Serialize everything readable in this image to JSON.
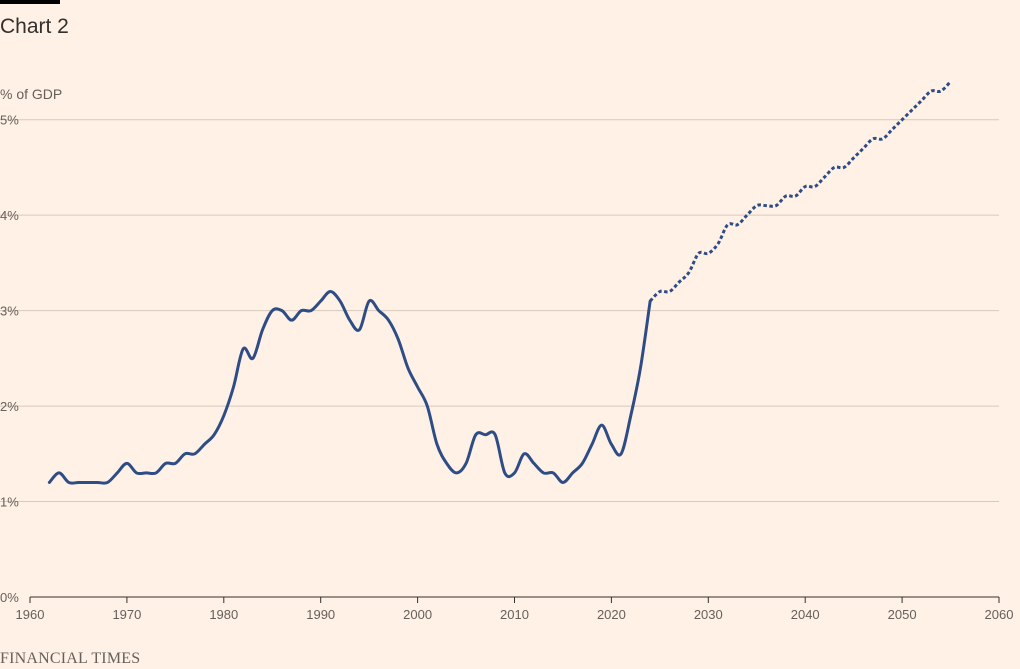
{
  "header": {
    "title": "Chart 2",
    "unit": "% of GDP"
  },
  "footer": {
    "source": "FINANCIAL TIMES"
  },
  "colors": {
    "background": "#fff1e5",
    "line": "#2e4d86",
    "grid": "#d6c9bd",
    "axis": "#33302e",
    "text": "#66605c"
  },
  "chart_data": {
    "type": "line",
    "title": "Chart 2",
    "xlabel": "",
    "ylabel": "% of GDP",
    "xlim": [
      1960,
      2060
    ],
    "ylim": [
      0,
      5.5
    ],
    "x_ticks": [
      1960,
      1970,
      1980,
      1990,
      2000,
      2010,
      2020,
      2030,
      2040,
      2050,
      2060
    ],
    "y_ticks": [
      {
        "value": 0,
        "label": "0%"
      },
      {
        "value": 1,
        "label": "1%"
      },
      {
        "value": 2,
        "label": "2%"
      },
      {
        "value": 3,
        "label": "3%"
      },
      {
        "value": 4,
        "label": "4%"
      },
      {
        "value": 5,
        "label": "5%"
      }
    ],
    "grid": true,
    "series": [
      {
        "style": "solid",
        "x": [
          1962,
          1963,
          1964,
          1965,
          1966,
          1967,
          1968,
          1969,
          1970,
          1971,
          1972,
          1973,
          1974,
          1975,
          1976,
          1977,
          1978,
          1979,
          1980,
          1981,
          1982,
          1983,
          1984,
          1985,
          1986,
          1987,
          1988,
          1989,
          1990,
          1991,
          1992,
          1993,
          1994,
          1995,
          1996,
          1997,
          1998,
          1999,
          2000,
          2001,
          2002,
          2003,
          2004,
          2005,
          2006,
          2007,
          2008,
          2009,
          2010,
          2011,
          2012,
          2013,
          2014,
          2015,
          2016,
          2017,
          2018,
          2019,
          2020,
          2021,
          2022,
          2023,
          2024
        ],
        "y": [
          1.2,
          1.3,
          1.2,
          1.2,
          1.2,
          1.2,
          1.2,
          1.3,
          1.4,
          1.3,
          1.3,
          1.3,
          1.4,
          1.4,
          1.5,
          1.5,
          1.6,
          1.7,
          1.9,
          2.2,
          2.6,
          2.5,
          2.8,
          3.0,
          3.0,
          2.9,
          3.0,
          3.0,
          3.1,
          3.2,
          3.1,
          2.9,
          2.8,
          3.1,
          3.0,
          2.9,
          2.7,
          2.4,
          2.2,
          2.0,
          1.6,
          1.4,
          1.3,
          1.4,
          1.7,
          1.7,
          1.7,
          1.3,
          1.3,
          1.5,
          1.4,
          1.3,
          1.3,
          1.2,
          1.3,
          1.4,
          1.6,
          1.8,
          1.6,
          1.5,
          1.9,
          2.4,
          3.1
        ]
      },
      {
        "style": "dotted",
        "x": [
          2024,
          2025,
          2026,
          2027,
          2028,
          2029,
          2030,
          2031,
          2032,
          2033,
          2034,
          2035,
          2036,
          2037,
          2038,
          2039,
          2040,
          2041,
          2042,
          2043,
          2044,
          2045,
          2046,
          2047,
          2048,
          2049,
          2050,
          2051,
          2052,
          2053,
          2054,
          2055
        ],
        "y": [
          3.1,
          3.2,
          3.2,
          3.3,
          3.4,
          3.6,
          3.6,
          3.7,
          3.9,
          3.9,
          4.0,
          4.1,
          4.1,
          4.1,
          4.2,
          4.2,
          4.3,
          4.3,
          4.4,
          4.5,
          4.5,
          4.6,
          4.7,
          4.8,
          4.8,
          4.9,
          5.0,
          5.1,
          5.2,
          5.3,
          5.3,
          5.4
        ]
      }
    ]
  }
}
